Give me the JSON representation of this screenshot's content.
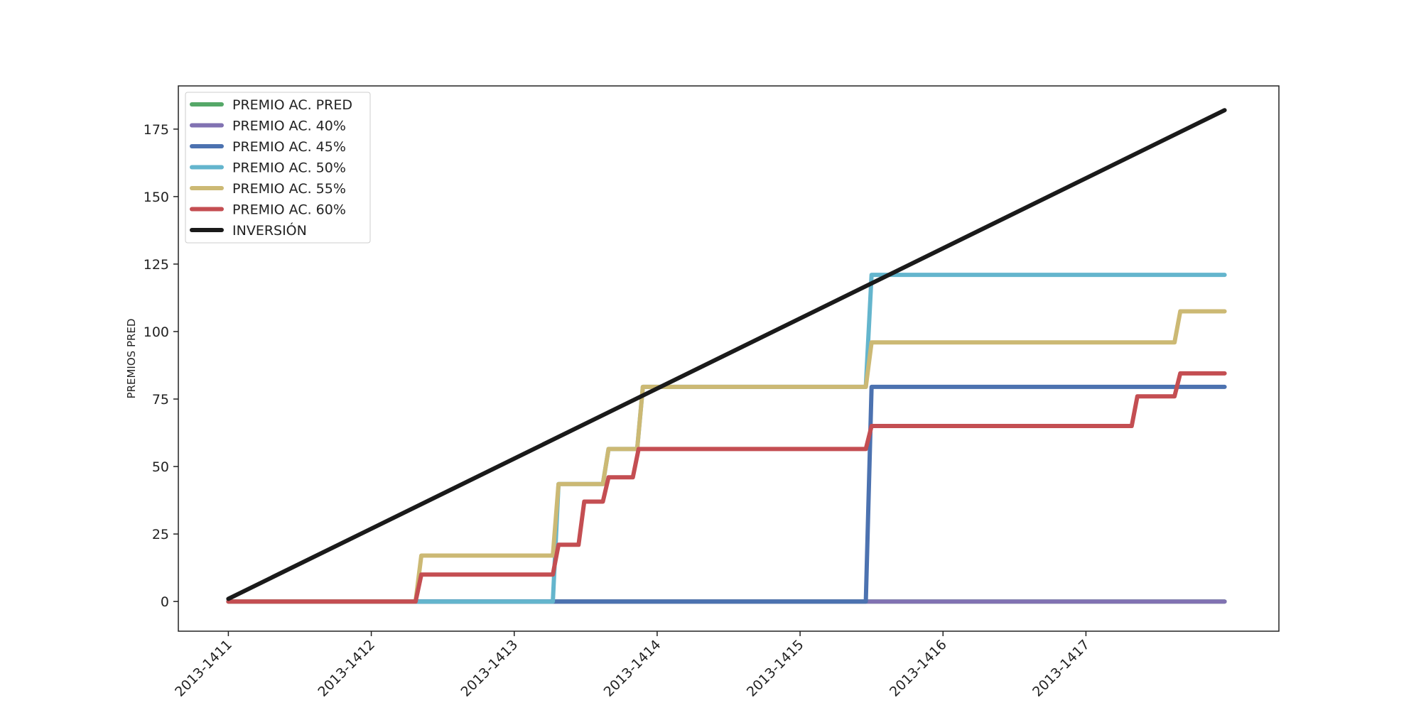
{
  "chart_data": {
    "type": "line",
    "title": "",
    "xlabel": "",
    "ylabel": "PREMIOS PRED",
    "x_start": "2013-1411",
    "x_ticks": [
      "2013-1411",
      "2013-1412",
      "2013-1413",
      "2013-1414",
      "2013-1415",
      "2013-1416",
      "2013-1417"
    ],
    "xlim": [
      -0.35,
      7.35
    ],
    "ylim": [
      -11,
      191
    ],
    "y_ticks": [
      0,
      25,
      50,
      75,
      100,
      125,
      150,
      175
    ],
    "grid": false,
    "legend_position": "top-left",
    "series": [
      {
        "name": "PREMIO AC. PRED",
        "color": "#55a868",
        "points": [
          [
            0,
            0
          ],
          [
            6.97,
            0
          ]
        ]
      },
      {
        "name": "PREMIO AC. 40%",
        "color": "#8172b2",
        "points": [
          [
            0,
            0
          ],
          [
            6.97,
            0
          ]
        ]
      },
      {
        "name": "PREMIO AC. 45%",
        "color": "#4c72b0",
        "points": [
          [
            0,
            0
          ],
          [
            4.46,
            0
          ],
          [
            4.5,
            79.5
          ],
          [
            6.97,
            79.5
          ]
        ]
      },
      {
        "name": "PREMIO AC. 50%",
        "color": "#64b5cd",
        "points": [
          [
            0,
            0
          ],
          [
            2.27,
            0
          ],
          [
            2.31,
            43.5
          ],
          [
            2.62,
            43.5
          ],
          [
            2.66,
            56.5
          ],
          [
            2.86,
            56.5
          ],
          [
            2.9,
            79.5
          ],
          [
            4.46,
            79.5
          ],
          [
            4.5,
            121
          ],
          [
            6.97,
            121
          ]
        ]
      },
      {
        "name": "PREMIO AC. 55%",
        "color": "#ccb974",
        "points": [
          [
            0,
            0
          ],
          [
            1.31,
            0
          ],
          [
            1.35,
            17
          ],
          [
            2.27,
            17
          ],
          [
            2.31,
            43.5
          ],
          [
            2.62,
            43.5
          ],
          [
            2.66,
            56.5
          ],
          [
            2.86,
            56.5
          ],
          [
            2.9,
            79.5
          ],
          [
            4.46,
            79.5
          ],
          [
            4.5,
            96
          ],
          [
            6.62,
            96
          ],
          [
            6.66,
            107.5
          ],
          [
            6.97,
            107.5
          ]
        ]
      },
      {
        "name": "PREMIO AC. 60%",
        "color": "#c44e52",
        "points": [
          [
            0,
            0
          ],
          [
            1.31,
            0
          ],
          [
            1.35,
            10
          ],
          [
            2.27,
            10
          ],
          [
            2.31,
            21
          ],
          [
            2.45,
            21
          ],
          [
            2.49,
            37
          ],
          [
            2.62,
            37
          ],
          [
            2.66,
            46
          ],
          [
            2.83,
            46
          ],
          [
            2.87,
            56.5
          ],
          [
            4.46,
            56.5
          ],
          [
            4.5,
            65
          ],
          [
            6.32,
            65
          ],
          [
            6.36,
            76
          ],
          [
            6.62,
            76
          ],
          [
            6.66,
            84.5
          ],
          [
            6.97,
            84.5
          ]
        ]
      },
      {
        "name": "INVERSIÓN",
        "color": "#1a1a1a",
        "points": [
          [
            0,
            1
          ],
          [
            6.97,
            182
          ]
        ]
      }
    ]
  }
}
